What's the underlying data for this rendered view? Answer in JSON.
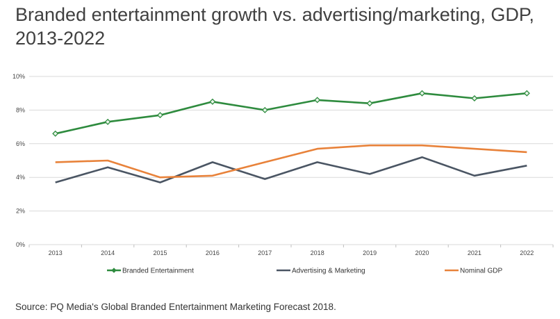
{
  "title": "Branded entertainment growth vs. advertising/marketing, GDP, 2013-2022",
  "source": "Source: PQ Media's Global Branded Entertainment Marketing Forecast 2018.",
  "chart_data": {
    "type": "line",
    "title": "Branded entertainment growth vs. advertising/marketing, GDP, 2013-2022",
    "x": [
      "2013",
      "2014",
      "2015",
      "2016",
      "2017",
      "2018",
      "2019",
      "2020",
      "2021",
      "2022"
    ],
    "ylim": [
      0,
      10
    ],
    "yticks": [
      0,
      2,
      4,
      6,
      8,
      10
    ],
    "ytick_labels": [
      "0%",
      "2%",
      "4%",
      "6%",
      "8%",
      "10%"
    ],
    "grid": true,
    "legend_position": "bottom",
    "series": [
      {
        "name": "Branded Entertainment",
        "color": "#2e8b3e",
        "marker": "diamond",
        "values": [
          6.6,
          7.3,
          7.7,
          8.5,
          8.0,
          8.6,
          8.4,
          9.0,
          8.7,
          9.0
        ]
      },
      {
        "name": "Advertising & Marketing",
        "color": "#4a5563",
        "marker": "none",
        "values": [
          3.7,
          4.6,
          3.7,
          4.9,
          3.9,
          4.9,
          4.2,
          5.2,
          4.1,
          4.7
        ]
      },
      {
        "name": "Nominal GDP",
        "color": "#e8823a",
        "marker": "none",
        "values": [
          4.9,
          5.0,
          4.0,
          4.1,
          4.9,
          5.7,
          5.9,
          5.9,
          5.7,
          5.5
        ]
      }
    ]
  }
}
